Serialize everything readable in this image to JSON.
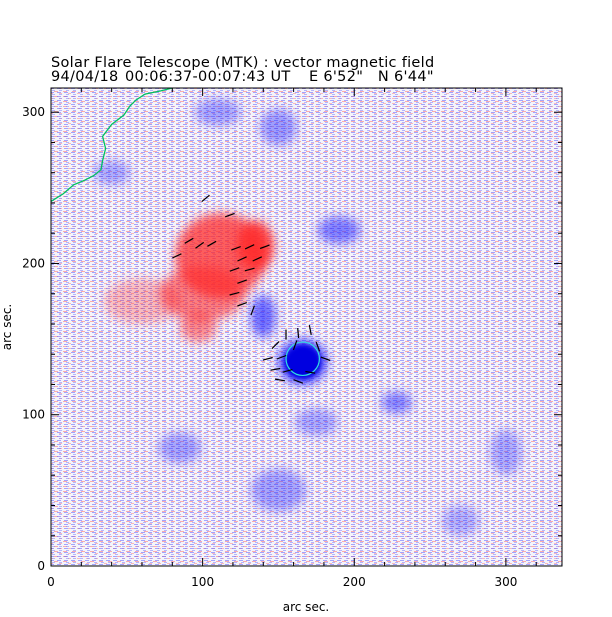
{
  "chart_data": {
    "type": "heatmap",
    "title": "Solar Flare Telescope (MTK) : vector magnetic field",
    "subtitle": {
      "date": "94/04/18",
      "time": "00:06:37-00:07:43 UT",
      "position": "E 6'52\"   N 6'44\""
    },
    "xlabel": "arc sec.",
    "ylabel": "arc sec.",
    "xlim": [
      0,
      337
    ],
    "ylim": [
      0,
      316
    ],
    "xticks": [
      0,
      100,
      200,
      300
    ],
    "yticks": [
      0,
      100,
      200,
      300
    ],
    "grid": false,
    "colors": {
      "positive_polarity": "#ff2a2a",
      "negative_polarity": "#2a2aff",
      "limb_contour": "#00c060",
      "umbra_contour": "#30e0e0",
      "vectors": "#000000"
    },
    "regions": [
      {
        "name": "positive-plage",
        "polarity": "positive",
        "x": 112,
        "y": 205,
        "rx": 30,
        "ry": 28,
        "strength": 0.85
      },
      {
        "name": "positive-plage-tail",
        "polarity": "positive",
        "x": 100,
        "y": 180,
        "rx": 28,
        "ry": 18,
        "strength": 0.6
      },
      {
        "name": "positive-plage-south",
        "polarity": "positive",
        "x": 97,
        "y": 158,
        "rx": 12,
        "ry": 10,
        "strength": 0.5
      },
      {
        "name": "positive-core-east",
        "polarity": "positive",
        "x": 135,
        "y": 212,
        "rx": 12,
        "ry": 16,
        "strength": 1.0
      },
      {
        "name": "positive-faint-west",
        "polarity": "positive",
        "x": 60,
        "y": 175,
        "rx": 25,
        "ry": 15,
        "strength": 0.18
      },
      {
        "name": "sunspot",
        "polarity": "negative",
        "x": 166,
        "y": 135,
        "rx": 16,
        "ry": 15,
        "strength": 1.0
      },
      {
        "name": "negative-lane",
        "polarity": "negative",
        "x": 140,
        "y": 165,
        "rx": 8,
        "ry": 14,
        "strength": 0.75
      },
      {
        "name": "negative-patch-north",
        "polarity": "negative",
        "x": 190,
        "y": 222,
        "rx": 14,
        "ry": 9,
        "strength": 0.6
      },
      {
        "name": "negative-patch-ne",
        "polarity": "negative",
        "x": 150,
        "y": 290,
        "rx": 12,
        "ry": 12,
        "strength": 0.4
      },
      {
        "name": "negative-patch-top",
        "polarity": "negative",
        "x": 110,
        "y": 300,
        "rx": 15,
        "ry": 9,
        "strength": 0.35
      },
      {
        "name": "negative-patch-east",
        "polarity": "negative",
        "x": 228,
        "y": 108,
        "rx": 10,
        "ry": 7,
        "strength": 0.55
      },
      {
        "name": "negative-patch-south",
        "polarity": "negative",
        "x": 150,
        "y": 50,
        "rx": 18,
        "ry": 14,
        "strength": 0.35
      },
      {
        "name": "negative-patch-sw",
        "polarity": "negative",
        "x": 85,
        "y": 78,
        "rx": 14,
        "ry": 10,
        "strength": 0.35
      },
      {
        "name": "negative-patch-center",
        "polarity": "negative",
        "x": 175,
        "y": 95,
        "rx": 14,
        "ry": 9,
        "strength": 0.3
      },
      {
        "name": "negative-patch-far-east",
        "polarity": "negative",
        "x": 300,
        "y": 75,
        "rx": 10,
        "ry": 15,
        "strength": 0.3
      },
      {
        "name": "negative-patch-se",
        "polarity": "negative",
        "x": 270,
        "y": 30,
        "rx": 12,
        "ry": 10,
        "strength": 0.25
      },
      {
        "name": "negative-patch-nw",
        "polarity": "negative",
        "x": 40,
        "y": 260,
        "rx": 12,
        "ry": 8,
        "strength": 0.3
      }
    ],
    "limb_contour": [
      [
        0,
        241
      ],
      [
        8,
        246
      ],
      [
        15,
        252
      ],
      [
        22,
        255
      ],
      [
        28,
        258
      ],
      [
        33,
        262
      ],
      [
        34,
        268
      ],
      [
        36,
        276
      ],
      [
        34,
        284
      ],
      [
        40,
        292
      ],
      [
        48,
        298
      ],
      [
        52,
        304
      ],
      [
        56,
        308
      ],
      [
        62,
        312
      ],
      [
        72,
        314
      ],
      [
        80,
        316
      ]
    ],
    "umbra_contour": {
      "x": 166,
      "y": 137,
      "r": 11
    },
    "vectors": [
      {
        "x": 102,
        "y": 243,
        "angle": 40
      },
      {
        "x": 118,
        "y": 232,
        "angle": 20
      },
      {
        "x": 91,
        "y": 215,
        "angle": 30
      },
      {
        "x": 98,
        "y": 212,
        "angle": 35
      },
      {
        "x": 106,
        "y": 213,
        "angle": 30
      },
      {
        "x": 83,
        "y": 205,
        "angle": 25
      },
      {
        "x": 122,
        "y": 210,
        "angle": 20
      },
      {
        "x": 131,
        "y": 211,
        "angle": 25
      },
      {
        "x": 141,
        "y": 211,
        "angle": 20
      },
      {
        "x": 126,
        "y": 203,
        "angle": 25
      },
      {
        "x": 136,
        "y": 203,
        "angle": 25
      },
      {
        "x": 121,
        "y": 196,
        "angle": 20
      },
      {
        "x": 131,
        "y": 196,
        "angle": 15
      },
      {
        "x": 126,
        "y": 188,
        "angle": 20
      },
      {
        "x": 121,
        "y": 180,
        "angle": 15
      },
      {
        "x": 126,
        "y": 173,
        "angle": 20
      },
      {
        "x": 133,
        "y": 169,
        "angle": 70
      },
      {
        "x": 155,
        "y": 153,
        "angle": 90
      },
      {
        "x": 163,
        "y": 154,
        "angle": 95
      },
      {
        "x": 171,
        "y": 156,
        "angle": 100
      },
      {
        "x": 148,
        "y": 146,
        "angle": 45
      },
      {
        "x": 161,
        "y": 146,
        "angle": 70
      },
      {
        "x": 176,
        "y": 145,
        "angle": 110
      },
      {
        "x": 143,
        "y": 137,
        "angle": 15
      },
      {
        "x": 152,
        "y": 138,
        "angle": 20
      },
      {
        "x": 181,
        "y": 137,
        "angle": 160
      },
      {
        "x": 148,
        "y": 130,
        "angle": 10
      },
      {
        "x": 156,
        "y": 129,
        "angle": 15
      },
      {
        "x": 171,
        "y": 128,
        "angle": -10
      },
      {
        "x": 151,
        "y": 123,
        "angle": -10
      },
      {
        "x": 163,
        "y": 122,
        "angle": -20
      }
    ]
  }
}
